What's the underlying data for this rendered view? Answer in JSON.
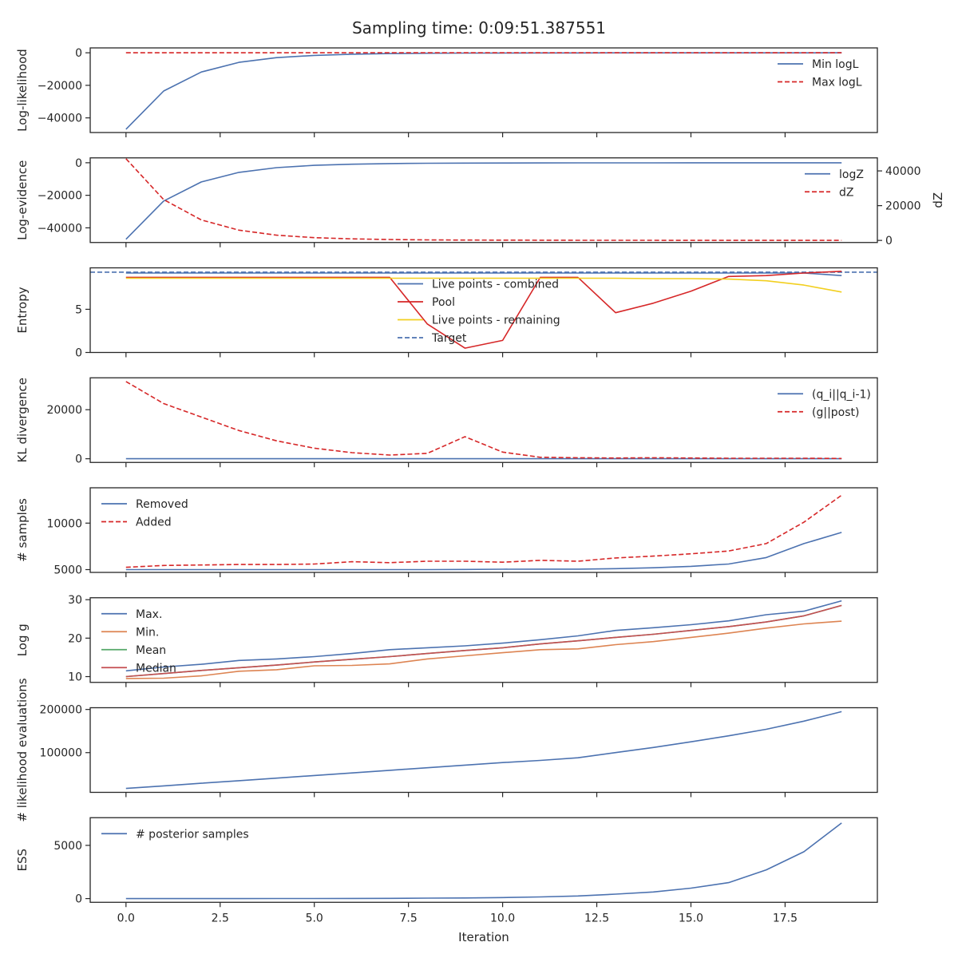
{
  "title": "Sampling time: 0:09:51.387551",
  "xlabel": "Iteration",
  "x_ticks": [
    "0.0",
    "2.5",
    "5.0",
    "7.5",
    "10.0",
    "12.5",
    "15.0",
    "17.5"
  ],
  "chart_data": [
    {
      "type": "line",
      "xlim": [
        -0.95,
        19.95
      ],
      "ylim": [
        -49000,
        3000
      ],
      "ylabel": "Log-likelihood",
      "y_ticks": [
        0,
        -20000,
        -40000
      ],
      "y_tick_labels": [
        "0",
        "−20000",
        "−40000"
      ],
      "legend": "upper right",
      "x": [
        0,
        1,
        2,
        3,
        4,
        5,
        6,
        7,
        8,
        9,
        10,
        11,
        12,
        13,
        14,
        15,
        16,
        17,
        18,
        19
      ],
      "series": [
        {
          "name": "Min logL",
          "color": "#4c72b0",
          "dash": false,
          "values": [
            -47000,
            -23500,
            -11800,
            -5900,
            -3000,
            -1600,
            -900,
            -500,
            -300,
            -200,
            -150,
            -100,
            -80,
            -60,
            -50,
            -40,
            -30,
            -25,
            -20,
            -15
          ]
        },
        {
          "name": "Max logL",
          "color": "#d62728",
          "dash": true,
          "values": [
            -5,
            -5,
            -5,
            -5,
            -5,
            -5,
            -5,
            -5,
            -5,
            -5,
            -5,
            -5,
            -5,
            -5,
            -5,
            -5,
            -5,
            -5,
            -5,
            -5
          ]
        }
      ]
    },
    {
      "type": "line",
      "xlim": [
        -0.95,
        19.95
      ],
      "ylim": [
        -49000,
        3000
      ],
      "ylabel": "Log-evidence",
      "y_ticks": [
        0,
        -20000,
        -40000
      ],
      "y_tick_labels": [
        "0",
        "−20000",
        "−40000"
      ],
      "y2label": "dZ",
      "y2lim": [
        -1200,
        47500
      ],
      "y2_ticks": [
        0,
        20000,
        40000
      ],
      "y2_tick_labels": [
        "0",
        "20000",
        "40000"
      ],
      "legend": "upper right",
      "x": [
        0,
        1,
        2,
        3,
        4,
        5,
        6,
        7,
        8,
        9,
        10,
        11,
        12,
        13,
        14,
        15,
        16,
        17,
        18,
        19
      ],
      "series": [
        {
          "name": "logZ",
          "color": "#4c72b0",
          "dash": false,
          "axis": "left",
          "values": [
            -47000,
            -23500,
            -11800,
            -5900,
            -3000,
            -1600,
            -900,
            -500,
            -300,
            -200,
            -150,
            -100,
            -80,
            -60,
            -50,
            -40,
            -30,
            -25,
            -20,
            -15
          ]
        },
        {
          "name": "dZ",
          "color": "#d62728",
          "dash": true,
          "axis": "right",
          "values": [
            47000,
            23500,
            11800,
            5900,
            3000,
            1600,
            900,
            500,
            300,
            200,
            150,
            100,
            80,
            60,
            50,
            40,
            30,
            25,
            20,
            15
          ]
        }
      ]
    },
    {
      "type": "line",
      "xlim": [
        -0.95,
        19.95
      ],
      "ylim": [
        0,
        9.8
      ],
      "ylabel": "Entropy",
      "y_ticks": [
        0,
        5
      ],
      "y_tick_labels": [
        "0",
        "5"
      ],
      "legend": "center",
      "x": [
        0,
        1,
        2,
        3,
        4,
        5,
        6,
        7,
        8,
        9,
        10,
        11,
        12,
        13,
        14,
        15,
        16,
        17,
        18,
        19
      ],
      "series": [
        {
          "name": "Live points - combined",
          "color": "#4c72b0",
          "dash": false,
          "values": [
            9.2,
            9.2,
            9.2,
            9.2,
            9.2,
            9.2,
            9.2,
            9.2,
            9.2,
            9.2,
            9.2,
            9.2,
            9.2,
            9.2,
            9.2,
            9.2,
            9.2,
            9.2,
            9.2,
            8.9
          ]
        },
        {
          "name": "Pool",
          "color": "#d62728",
          "dash": false,
          "values": [
            8.7,
            8.7,
            8.7,
            8.7,
            8.7,
            8.7,
            8.7,
            8.7,
            3.3,
            0.5,
            1.4,
            8.7,
            8.7,
            4.6,
            5.7,
            7.1,
            8.8,
            8.9,
            9.2,
            9.4
          ]
        },
        {
          "name": "Live points - remaining",
          "color": "#f2cf1f",
          "dash": false,
          "values": [
            8.6,
            8.6,
            8.6,
            8.6,
            8.6,
            8.6,
            8.6,
            8.6,
            8.6,
            8.6,
            8.6,
            8.6,
            8.6,
            8.6,
            8.55,
            8.55,
            8.5,
            8.3,
            7.8,
            7.0
          ]
        }
      ],
      "hlines": [
        {
          "name": "Target",
          "color": "#4c72b0",
          "dash": true,
          "value": 9.3
        }
      ]
    },
    {
      "type": "line",
      "xlim": [
        -0.95,
        19.95
      ],
      "ylim": [
        -1500,
        33000
      ],
      "ylabel": "KL divergence",
      "y_ticks": [
        0,
        20000
      ],
      "y_tick_labels": [
        "0",
        "20000"
      ],
      "legend": "upper right",
      "x": [
        0,
        1,
        2,
        3,
        4,
        5,
        6,
        7,
        8,
        9,
        10,
        11,
        12,
        13,
        14,
        15,
        16,
        17,
        18,
        19
      ],
      "series": [
        {
          "name": "(q_i||q_i-1)",
          "color": "#4c72b0",
          "dash": false,
          "values": [
            0,
            0,
            0,
            0,
            0,
            0,
            0,
            0,
            0,
            0,
            0,
            0,
            0,
            0,
            0,
            0,
            0,
            0,
            0,
            0
          ]
        },
        {
          "name": "(g||post)",
          "color": "#d62728",
          "dash": true,
          "values": [
            31500,
            22500,
            17000,
            11500,
            7300,
            4300,
            2500,
            1500,
            2200,
            9000,
            2700,
            600,
            400,
            300,
            400,
            300,
            200,
            200,
            200,
            100
          ]
        }
      ]
    },
    {
      "type": "line",
      "xlim": [
        -0.95,
        19.95
      ],
      "ylim": [
        4700,
        13800
      ],
      "ylabel": "# samples",
      "y_ticks": [
        5000,
        10000
      ],
      "y_tick_labels": [
        "5000",
        "10000"
      ],
      "legend": "upper left",
      "x": [
        0,
        1,
        2,
        3,
        4,
        5,
        6,
        7,
        8,
        9,
        10,
        11,
        12,
        13,
        14,
        15,
        16,
        17,
        18,
        19
      ],
      "series": [
        {
          "name": "Removed",
          "color": "#4c72b0",
          "dash": false,
          "values": [
            5000,
            5000,
            5000,
            5000,
            5000,
            5000,
            5000,
            5000,
            5000,
            5020,
            5040,
            5050,
            5050,
            5100,
            5200,
            5350,
            5600,
            6300,
            7800,
            9000
          ]
        },
        {
          "name": "Added",
          "color": "#d62728",
          "dash": true,
          "values": [
            5250,
            5450,
            5500,
            5550,
            5550,
            5600,
            5850,
            5750,
            5900,
            5900,
            5800,
            6000,
            5900,
            6250,
            6450,
            6700,
            7000,
            7800,
            10100,
            13000
          ]
        }
      ]
    },
    {
      "type": "line",
      "xlim": [
        -0.95,
        19.95
      ],
      "ylim": [
        8.5,
        30.5
      ],
      "ylabel": "Log g",
      "y_ticks": [
        10,
        20,
        30
      ],
      "y_tick_labels": [
        "10",
        "20",
        "30"
      ],
      "legend": "upper left",
      "x": [
        0,
        1,
        2,
        3,
        4,
        5,
        6,
        7,
        8,
        9,
        10,
        11,
        12,
        13,
        14,
        15,
        16,
        17,
        18,
        19
      ],
      "series": [
        {
          "name": "Max.",
          "color": "#4c72b0",
          "dash": false,
          "values": [
            11.5,
            12.5,
            13.2,
            14.2,
            14.6,
            15.2,
            16.0,
            17.0,
            17.5,
            18.0,
            18.7,
            19.6,
            20.6,
            22.0,
            22.7,
            23.5,
            24.5,
            26.1,
            27.0,
            29.7
          ]
        },
        {
          "name": "Min.",
          "color": "#dd8452",
          "dash": false,
          "values": [
            9.5,
            9.6,
            10.2,
            11.4,
            11.8,
            12.8,
            12.9,
            13.3,
            14.6,
            15.4,
            16.2,
            17.0,
            17.2,
            18.3,
            19.1,
            20.2,
            21.3,
            22.6,
            23.7,
            24.4
          ]
        },
        {
          "name": "Mean",
          "color": "#55a868",
          "dash": false,
          "values": [
            10.0,
            10.8,
            11.6,
            12.3,
            13.0,
            13.8,
            14.5,
            15.2,
            16.0,
            16.8,
            17.5,
            18.5,
            19.3,
            20.2,
            21.0,
            22.0,
            23.0,
            24.2,
            25.8,
            28.5
          ]
        },
        {
          "name": "Median",
          "color": "#c44e52",
          "dash": false,
          "values": [
            10.0,
            10.8,
            11.6,
            12.3,
            13.0,
            13.8,
            14.5,
            15.2,
            16.0,
            16.8,
            17.5,
            18.5,
            19.3,
            20.2,
            21.0,
            22.0,
            23.0,
            24.2,
            25.8,
            28.5
          ]
        }
      ]
    },
    {
      "type": "line",
      "xlim": [
        -0.95,
        19.95
      ],
      "ylim": [
        8000,
        204000
      ],
      "ylabel": "# likelihood evaluations",
      "y_ticks": [
        100000,
        200000
      ],
      "y_tick_labels": [
        "100000",
        "200000"
      ],
      "legend": "none",
      "x": [
        0,
        1,
        2,
        3,
        4,
        5,
        6,
        7,
        8,
        9,
        10,
        11,
        12,
        13,
        14,
        15,
        16,
        17,
        18,
        19
      ],
      "series": [
        {
          "name": "",
          "color": "#4c72b0",
          "dash": false,
          "values": [
            17000,
            23000,
            29000,
            35000,
            41000,
            47000,
            53000,
            59000,
            65000,
            71000,
            77000,
            82000,
            88000,
            100000,
            112000,
            125000,
            139000,
            154000,
            173000,
            195000
          ]
        }
      ]
    },
    {
      "type": "line",
      "xlim": [
        -0.95,
        19.95
      ],
      "ylim": [
        -350,
        7600
      ],
      "ylabel": "ESS",
      "y_ticks": [
        0,
        5000
      ],
      "y_tick_labels": [
        "0",
        "5000"
      ],
      "legend": "upper left",
      "x": [
        0,
        1,
        2,
        3,
        4,
        5,
        6,
        7,
        8,
        9,
        10,
        11,
        12,
        13,
        14,
        15,
        16,
        17,
        18,
        19
      ],
      "series": [
        {
          "name": "# posterior samples",
          "color": "#4c72b0",
          "dash": false,
          "values": [
            0,
            0,
            0,
            2,
            5,
            10,
            15,
            25,
            40,
            60,
            100,
            160,
            250,
            420,
            620,
            980,
            1500,
            2700,
            4400,
            7100
          ]
        }
      ]
    }
  ]
}
